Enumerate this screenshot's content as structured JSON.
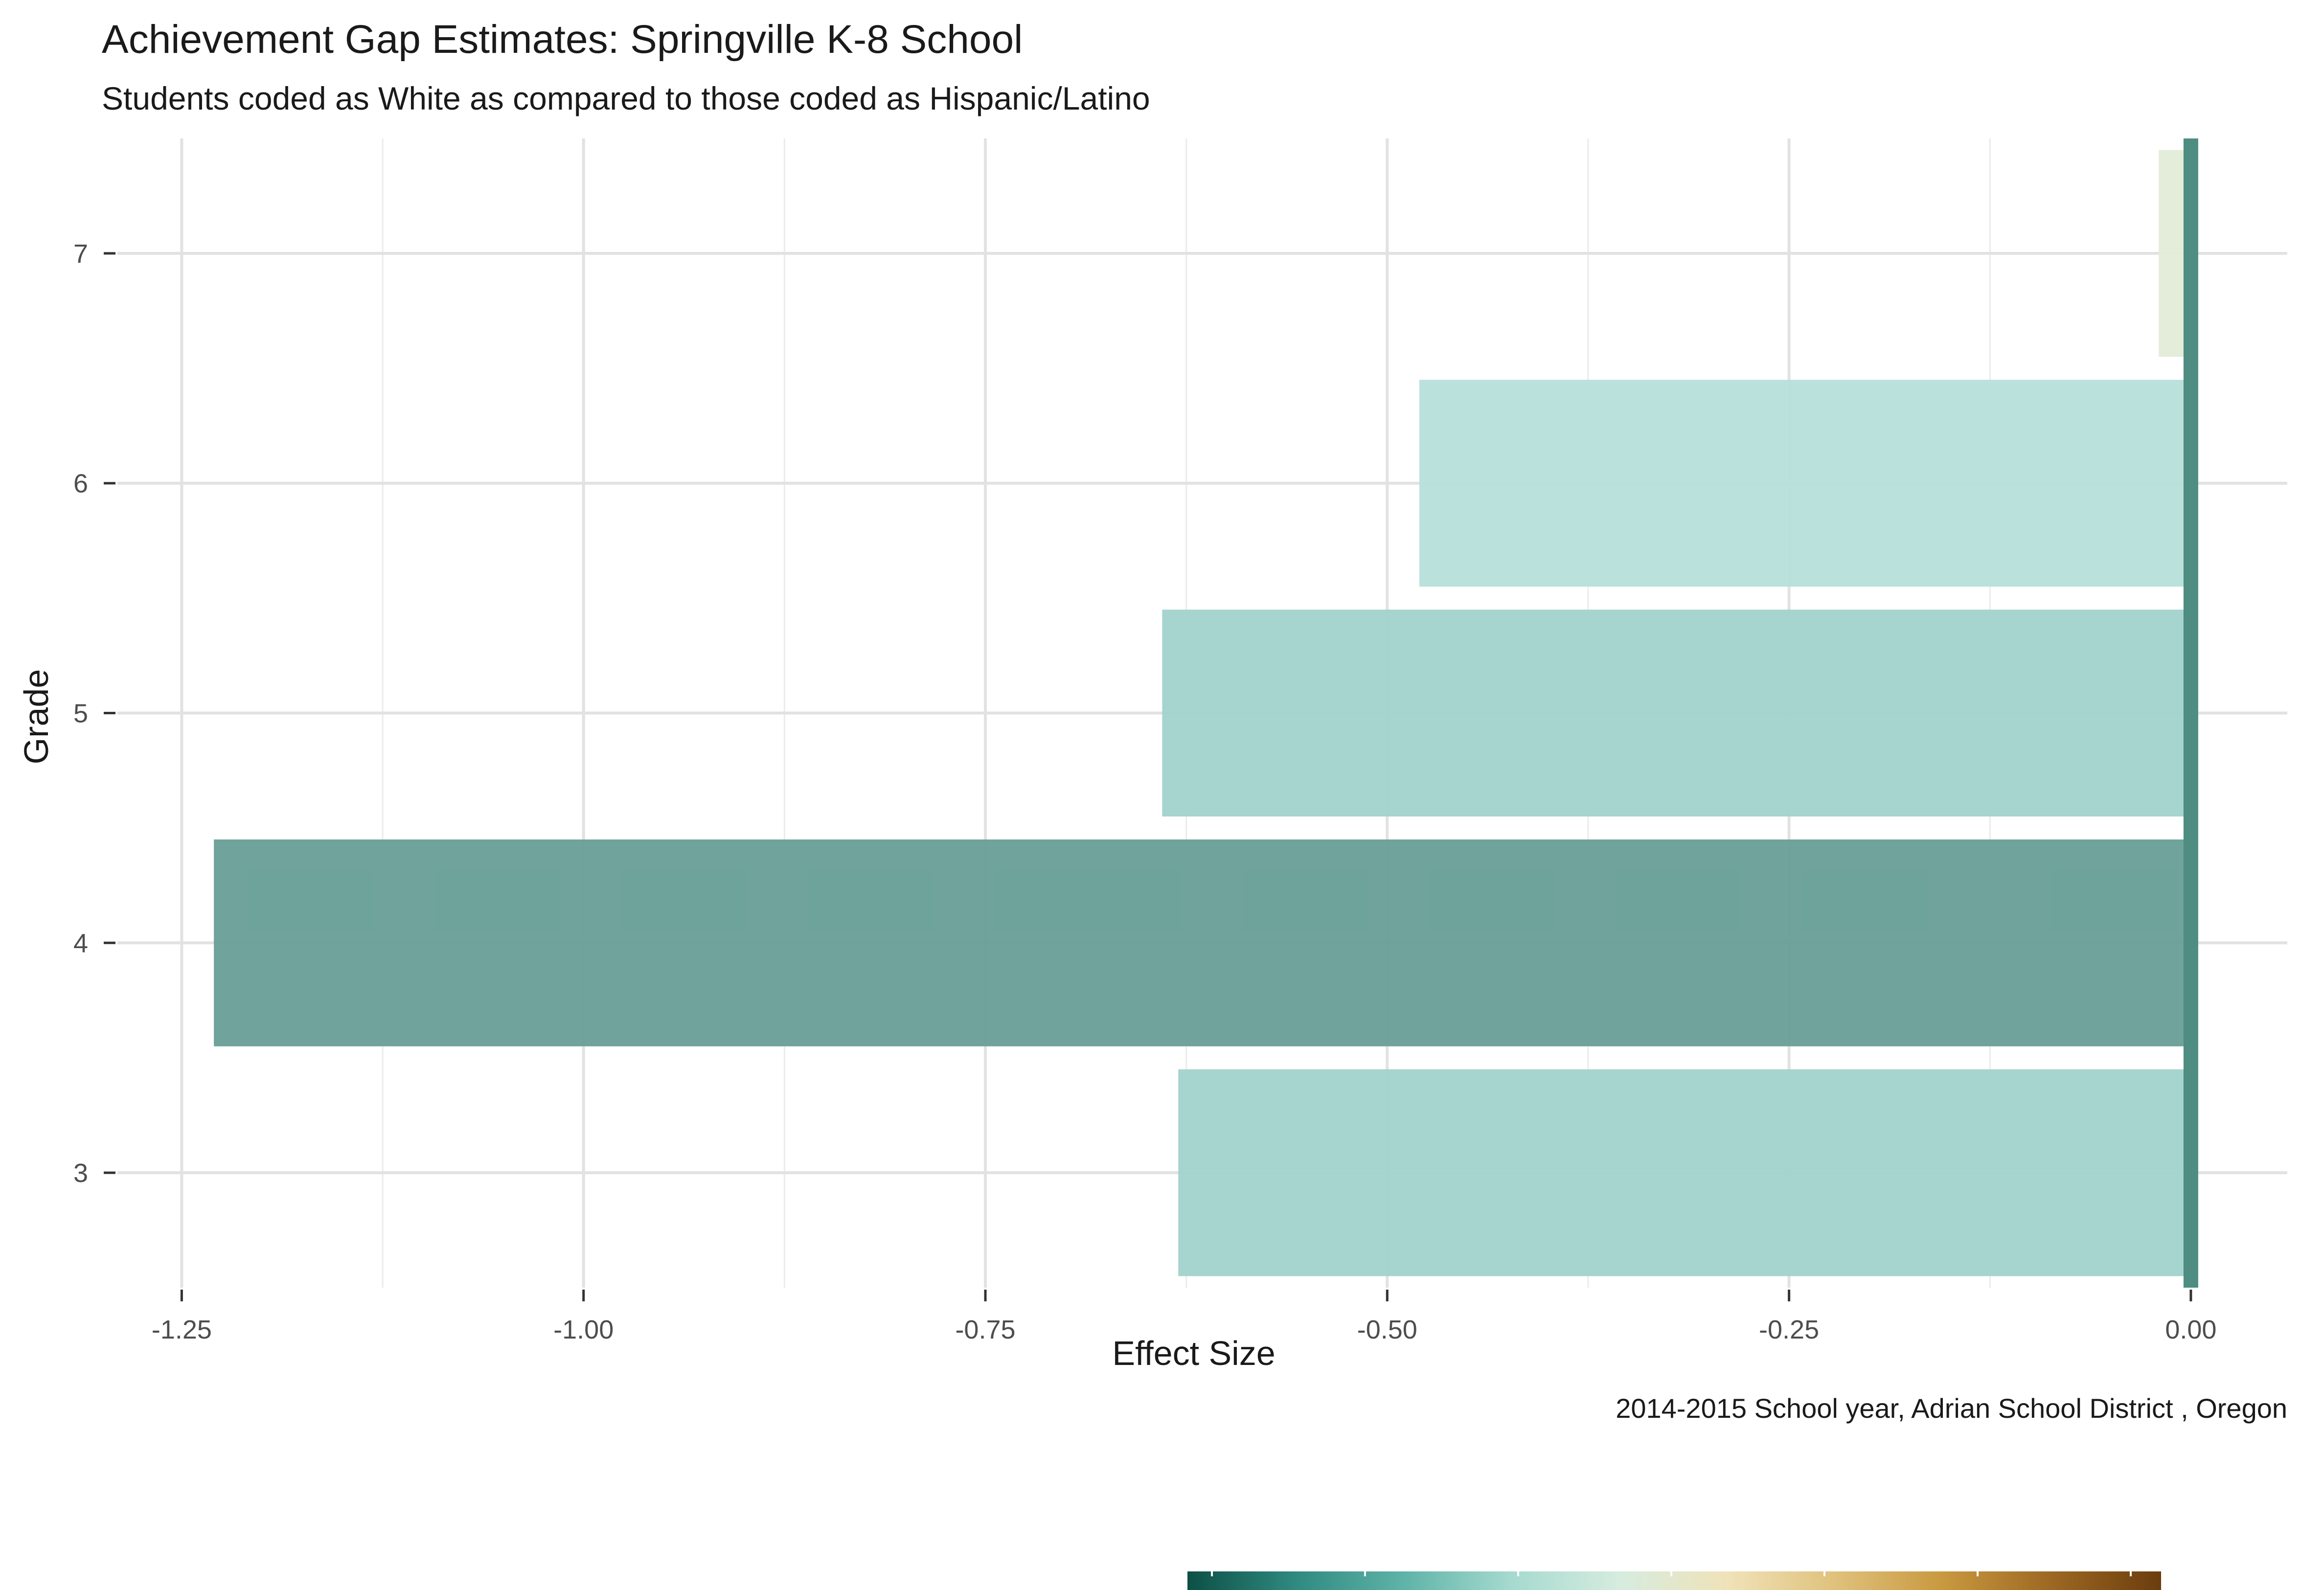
{
  "chart_data": {
    "type": "bar",
    "orientation": "horizontal",
    "title": "Achievement Gap Estimates: Springville K-8 School",
    "subtitle": "Students coded as White as compared to those coded as Hispanic/Latino",
    "caption": "2014-2015 School year,  Adrian School District , Oregon",
    "xlabel": "Effect Size",
    "ylabel": "Grade",
    "categories": [
      "3",
      "4",
      "5",
      "6",
      "7"
    ],
    "values": [
      -0.63,
      -1.23,
      -0.64,
      -0.48,
      -0.02
    ],
    "bar_colors": [
      "#a3d3cc",
      "#6aa098",
      "#a3d3cc",
      "#b9e0db",
      "#e3ecd9"
    ],
    "reference_line": {
      "x": 0.0,
      "color": "#4f8c82"
    },
    "xlim": [
      -1.29,
      0.06
    ],
    "xticks": [
      -1.25,
      -1.0,
      -0.75,
      -0.5,
      -0.25,
      0.0
    ],
    "xtick_labels": [
      "-1.25",
      "-1.00",
      "-0.75",
      "-0.50",
      "-0.25",
      "0.00"
    ],
    "grid": true,
    "legend": {
      "type": "colorbar",
      "placement": "bottom",
      "colors": [
        "#0d4f45",
        "#2f8a80",
        "#5fb3a8",
        "#a6dacf",
        "#d6ecdf",
        "#f0e2b8",
        "#dfc17b",
        "#c8983e",
        "#9c6722",
        "#6b3d0e"
      ]
    }
  }
}
